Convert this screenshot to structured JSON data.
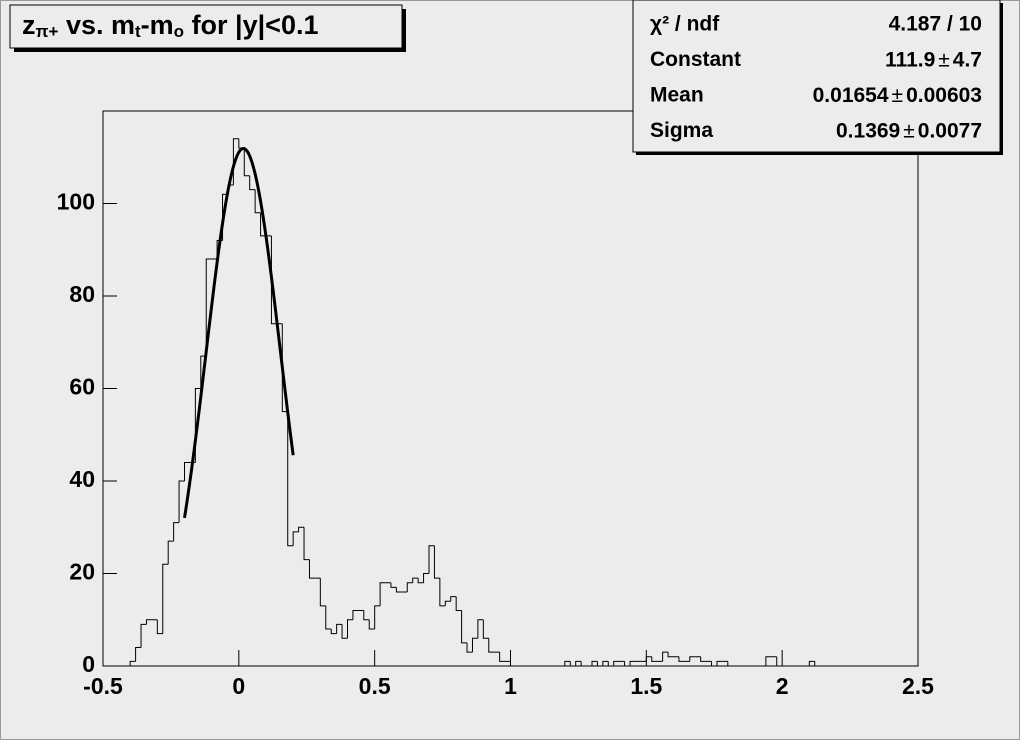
{
  "chart_data": {
    "type": "histogram",
    "title_parts": [
      {
        "text": "z"
      },
      {
        "text": "π+",
        "sub": true
      },
      {
        "text": " vs. m"
      },
      {
        "text": "t",
        "sub": true
      },
      {
        "text": "-m"
      },
      {
        "text": "o",
        "sub": true
      },
      {
        "text": " for |y|<0.1"
      }
    ],
    "color": "#000000",
    "bins": [
      -0.5,
      -0.48,
      -0.46,
      -0.44,
      -0.42,
      -0.4,
      -0.38,
      -0.36,
      -0.34,
      -0.32,
      -0.3,
      -0.28,
      -0.26,
      -0.24,
      -0.22,
      -0.2,
      -0.18,
      -0.16,
      -0.14,
      -0.12,
      -0.1,
      -0.08,
      -0.06,
      -0.04,
      -0.02,
      0,
      0.02,
      0.04,
      0.06,
      0.08,
      0.1,
      0.12,
      0.14,
      0.16,
      0.18,
      0.2,
      0.22,
      0.24,
      0.26,
      0.28,
      0.3,
      0.32,
      0.34,
      0.36,
      0.38,
      0.4,
      0.42,
      0.44,
      0.46,
      0.48,
      0.5,
      0.52,
      0.54,
      0.56,
      0.58,
      0.6,
      0.62,
      0.64,
      0.66,
      0.68,
      0.7,
      0.72,
      0.74,
      0.76,
      0.78,
      0.8,
      0.82,
      0.84,
      0.86,
      0.88,
      0.9,
      0.92,
      0.94,
      0.96,
      0.98,
      1,
      1.02,
      1.04,
      1.06,
      1.08,
      1.1,
      1.12,
      1.14,
      1.16,
      1.18,
      1.2,
      1.22,
      1.24,
      1.26,
      1.28,
      1.3,
      1.32,
      1.34,
      1.36,
      1.38,
      1.4,
      1.42,
      1.44,
      1.46,
      1.48,
      1.5,
      1.52,
      1.54,
      1.56,
      1.58,
      1.6,
      1.62,
      1.64,
      1.66,
      1.68,
      1.7,
      1.72,
      1.74,
      1.76,
      1.78,
      1.8,
      1.82,
      1.84,
      1.86,
      1.88,
      1.9,
      1.92,
      1.94,
      1.96,
      1.98,
      2,
      2.02,
      2.04,
      2.06,
      2.08,
      2.1,
      2.12,
      2.14,
      2.16,
      2.18,
      2.2,
      2.22,
      2.24,
      2.26,
      2.28,
      2.3,
      2.32,
      2.34,
      2.36,
      2.38,
      2.4,
      2.42,
      2.44,
      2.46,
      2.48,
      2.5
    ],
    "values": [
      0,
      0,
      0,
      0,
      0,
      1,
      4,
      9,
      10,
      10,
      7,
      22,
      27,
      31,
      40,
      44,
      44,
      60,
      67,
      88,
      88,
      92,
      102,
      104,
      114,
      112,
      106,
      103,
      98,
      93,
      93,
      74,
      74,
      55,
      26,
      29,
      30,
      23,
      19,
      19,
      13,
      8,
      7,
      9,
      6,
      10,
      12,
      12,
      10,
      8,
      13,
      18,
      18,
      17,
      16,
      16,
      18,
      19,
      18,
      20,
      26,
      19,
      13,
      14,
      15,
      12,
      5,
      3,
      6,
      10,
      6,
      3,
      3,
      1,
      1,
      0,
      0,
      0,
      0,
      0,
      0,
      0,
      0,
      0,
      0,
      1,
      0,
      1,
      0,
      0,
      1,
      0,
      1,
      0,
      1,
      1,
      0,
      1,
      1,
      1,
      2,
      1,
      1,
      3,
      2,
      2,
      1,
      1,
      2,
      2,
      1,
      1,
      0,
      1,
      1,
      0,
      0,
      0,
      0,
      0,
      0,
      0,
      2,
      2,
      0,
      0,
      0,
      0,
      0,
      0,
      1,
      0,
      0,
      0,
      0,
      0,
      0,
      0,
      0,
      0,
      0,
      0,
      0,
      0,
      0,
      0,
      0,
      0,
      0,
      0
    ],
    "xlim": [
      -0.5,
      2.5
    ],
    "xticks": [
      -0.5,
      0,
      0.5,
      1,
      1.5,
      2,
      2.5
    ],
    "ylim": [
      0,
      120
    ],
    "yticks": [
      0,
      20,
      40,
      60,
      80,
      100
    ],
    "fit_range": [
      -0.2,
      0.2
    ],
    "plus_minus": "±",
    "stats": [
      {
        "label": "χ² / ndf",
        "value": "4.187 / 10"
      },
      {
        "label": "Constant",
        "value": 111.9,
        "error": 4.7
      },
      {
        "label": "Mean",
        "value": 0.01654,
        "error": 0.00603
      },
      {
        "label": "Sigma",
        "value": 0.1369,
        "error": 0.0077
      }
    ]
  }
}
